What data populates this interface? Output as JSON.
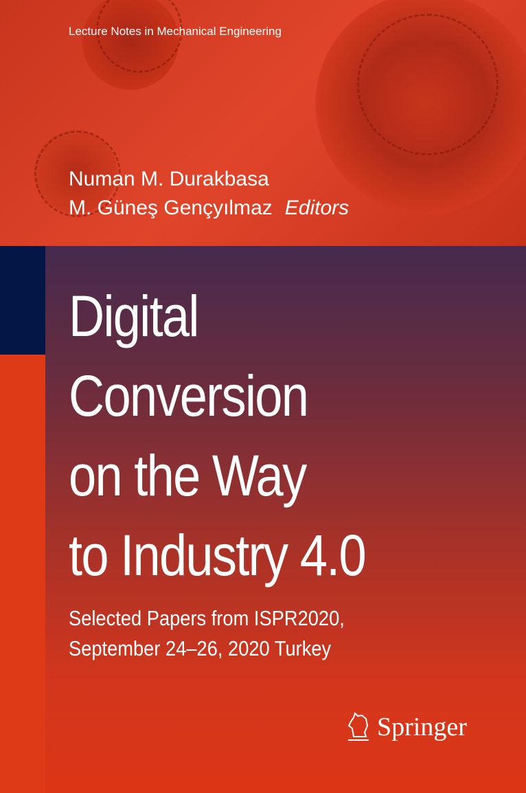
{
  "series": "Lecture Notes in Mechanical Engineering",
  "editors": [
    "Numan M. Durakbasa",
    "M. Güneş Gençyılmaz"
  ],
  "editors_label": "Editors",
  "title_lines": [
    "Digital",
    "Conversion",
    "on the Way",
    "to Industry 4.0"
  ],
  "subtitle_lines": [
    "Selected Papers from ISPR2020,",
    "September 24–26, 2020 Turkey"
  ],
  "publisher": "Springer",
  "colors": {
    "navy": "#031646",
    "red": "#de3a18",
    "purple": "#452a4e"
  }
}
